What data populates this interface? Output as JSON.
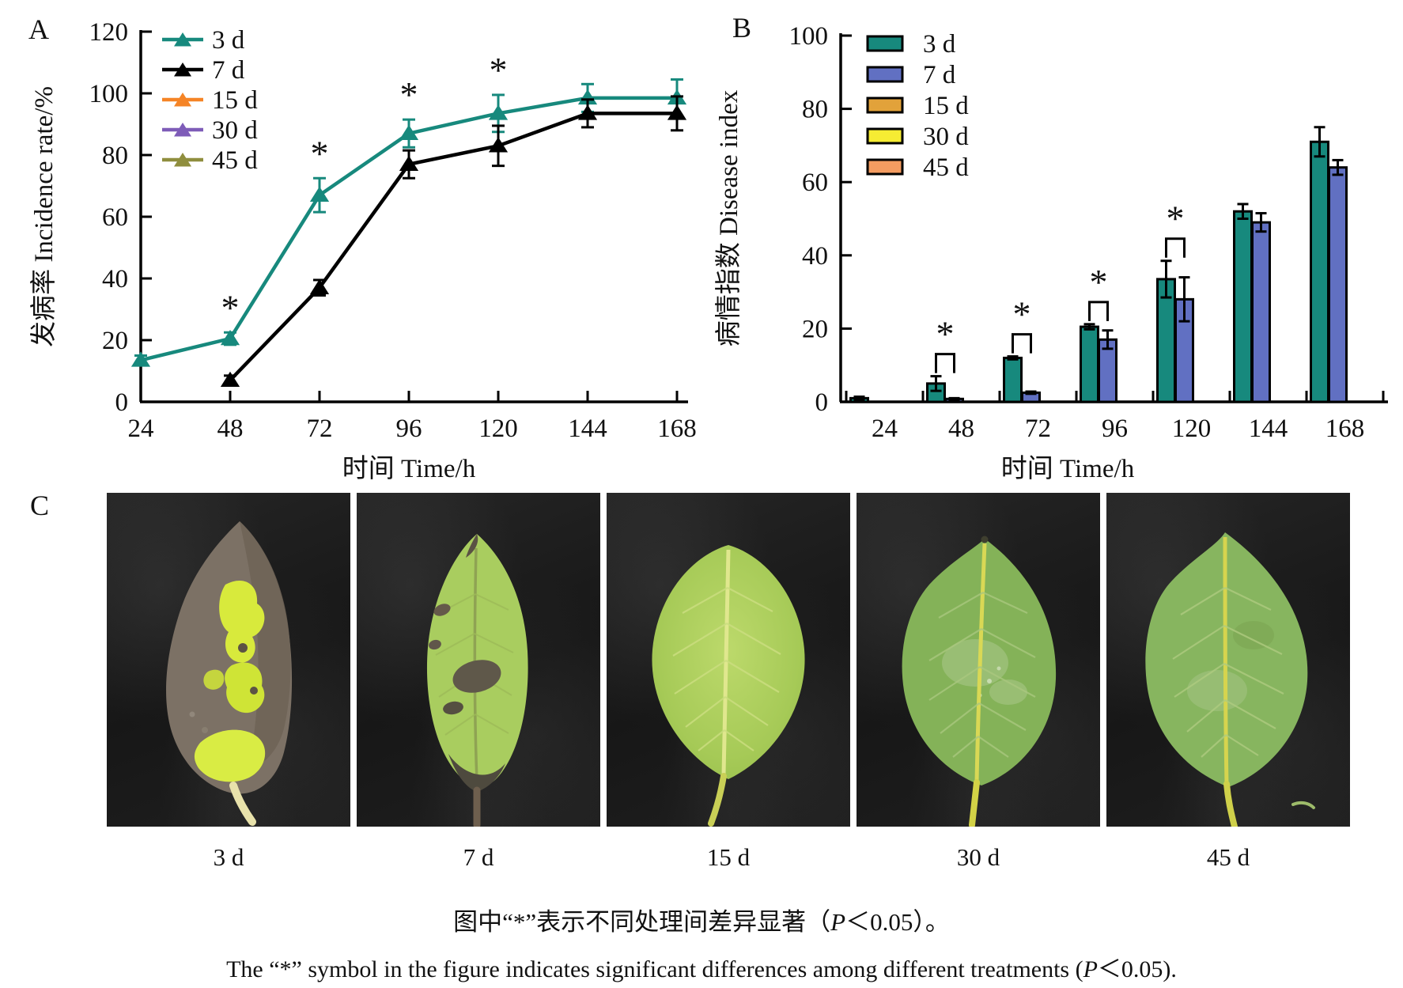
{
  "figure": {
    "panels": {
      "a_label": "A",
      "b_label": "B",
      "c_label": "C"
    }
  },
  "chart_data": [
    {
      "type": "line",
      "panel": "A",
      "title": "",
      "xlabel": "时间 Time/h",
      "ylabel": "发病率 Incidence rate/%",
      "x": [
        24,
        48,
        72,
        96,
        120,
        144,
        168
      ],
      "ylim": [
        0,
        120
      ],
      "yticks": [
        0,
        20,
        40,
        60,
        80,
        100,
        120
      ],
      "grid": false,
      "legend_position": "inside-top-left",
      "series": [
        {
          "name": "3 d",
          "color": "#17897d",
          "marker": "triangle",
          "values": [
            13.5,
            20.5,
            67,
            87,
            93.5,
            98.5,
            98.5
          ],
          "errors": [
            1.5,
            2,
            5.5,
            4.5,
            6,
            4.5,
            6
          ]
        },
        {
          "name": "7 d",
          "color": "#000000",
          "marker": "triangle",
          "values": [
            null,
            7,
            37,
            77,
            83,
            93.5,
            93.5
          ],
          "errors": [
            null,
            1.5,
            2.5,
            4.5,
            6.5,
            4.5,
            5.5
          ]
        },
        {
          "name": "15 d",
          "color": "#f58426",
          "marker": "triangle",
          "values": [
            null,
            null,
            null,
            null,
            null,
            null,
            null
          ],
          "errors": []
        },
        {
          "name": "30 d",
          "color": "#7e5cb8",
          "marker": "triangle",
          "values": [
            null,
            null,
            null,
            null,
            null,
            null,
            null
          ],
          "errors": []
        },
        {
          "name": "45 d",
          "color": "#8f8e3e",
          "marker": "triangle",
          "values": [
            null,
            null,
            null,
            null,
            null,
            null,
            null
          ],
          "errors": []
        }
      ],
      "sig_marks": [
        {
          "x": 48,
          "text": "*"
        },
        {
          "x": 72,
          "text": "*"
        },
        {
          "x": 96,
          "text": "*"
        },
        {
          "x": 120,
          "text": "*"
        }
      ]
    },
    {
      "type": "bar",
      "panel": "B",
      "title": "",
      "xlabel": "时间 Time/h",
      "ylabel": "病情指数 Disease index",
      "x": [
        24,
        48,
        72,
        96,
        120,
        144,
        168
      ],
      "ylim": [
        0,
        100
      ],
      "yticks": [
        0,
        20,
        40,
        60,
        80,
        100
      ],
      "grid": false,
      "legend_position": "inside-top-left",
      "series": [
        {
          "name": "3 d",
          "color": "#17897d",
          "values": [
            1,
            5,
            12,
            20.5,
            33.5,
            52,
            71
          ],
          "errors": [
            0.4,
            2,
            0.4,
            0.7,
            5,
            2,
            4
          ]
        },
        {
          "name": "7 d",
          "color": "#6170c2",
          "values": [
            0,
            0.8,
            2.5,
            17,
            28,
            49,
            64
          ],
          "errors": [
            0,
            0.2,
            0.3,
            2.5,
            6,
            2.5,
            2
          ]
        },
        {
          "name": "15 d",
          "color": "#e2a23a",
          "values": [
            0,
            0,
            0,
            0,
            0,
            0,
            0
          ],
          "errors": [
            0,
            0,
            0,
            0,
            0,
            0,
            0
          ]
        },
        {
          "name": "30 d",
          "color": "#f6ec33",
          "values": [
            0,
            0,
            0,
            0,
            0,
            0,
            0
          ],
          "errors": [
            0,
            0,
            0,
            0,
            0,
            0,
            0
          ]
        },
        {
          "name": "45 d",
          "color": "#f49c61",
          "values": [
            0,
            0,
            0,
            0,
            0,
            0,
            0
          ],
          "errors": [
            0,
            0,
            0,
            0,
            0,
            0,
            0
          ]
        }
      ],
      "sig_brackets": [
        {
          "x": 48,
          "text": "*"
        },
        {
          "x": 72,
          "text": "*"
        },
        {
          "x": 96,
          "text": "*"
        },
        {
          "x": 120,
          "text": "*"
        }
      ]
    }
  ],
  "photos": {
    "labels": [
      "3 d",
      "7 d",
      "15 d",
      "30 d",
      "45 d"
    ]
  },
  "caption": {
    "zh": {
      "before": "图中“*”表示不同处理间差异显著（",
      "p": "P",
      "after": "＜0.05）。"
    },
    "en": {
      "before": "The “*” symbol in the figure indicates significant differences among different treatments (",
      "p": "P",
      "after": "＜0.05)."
    }
  }
}
